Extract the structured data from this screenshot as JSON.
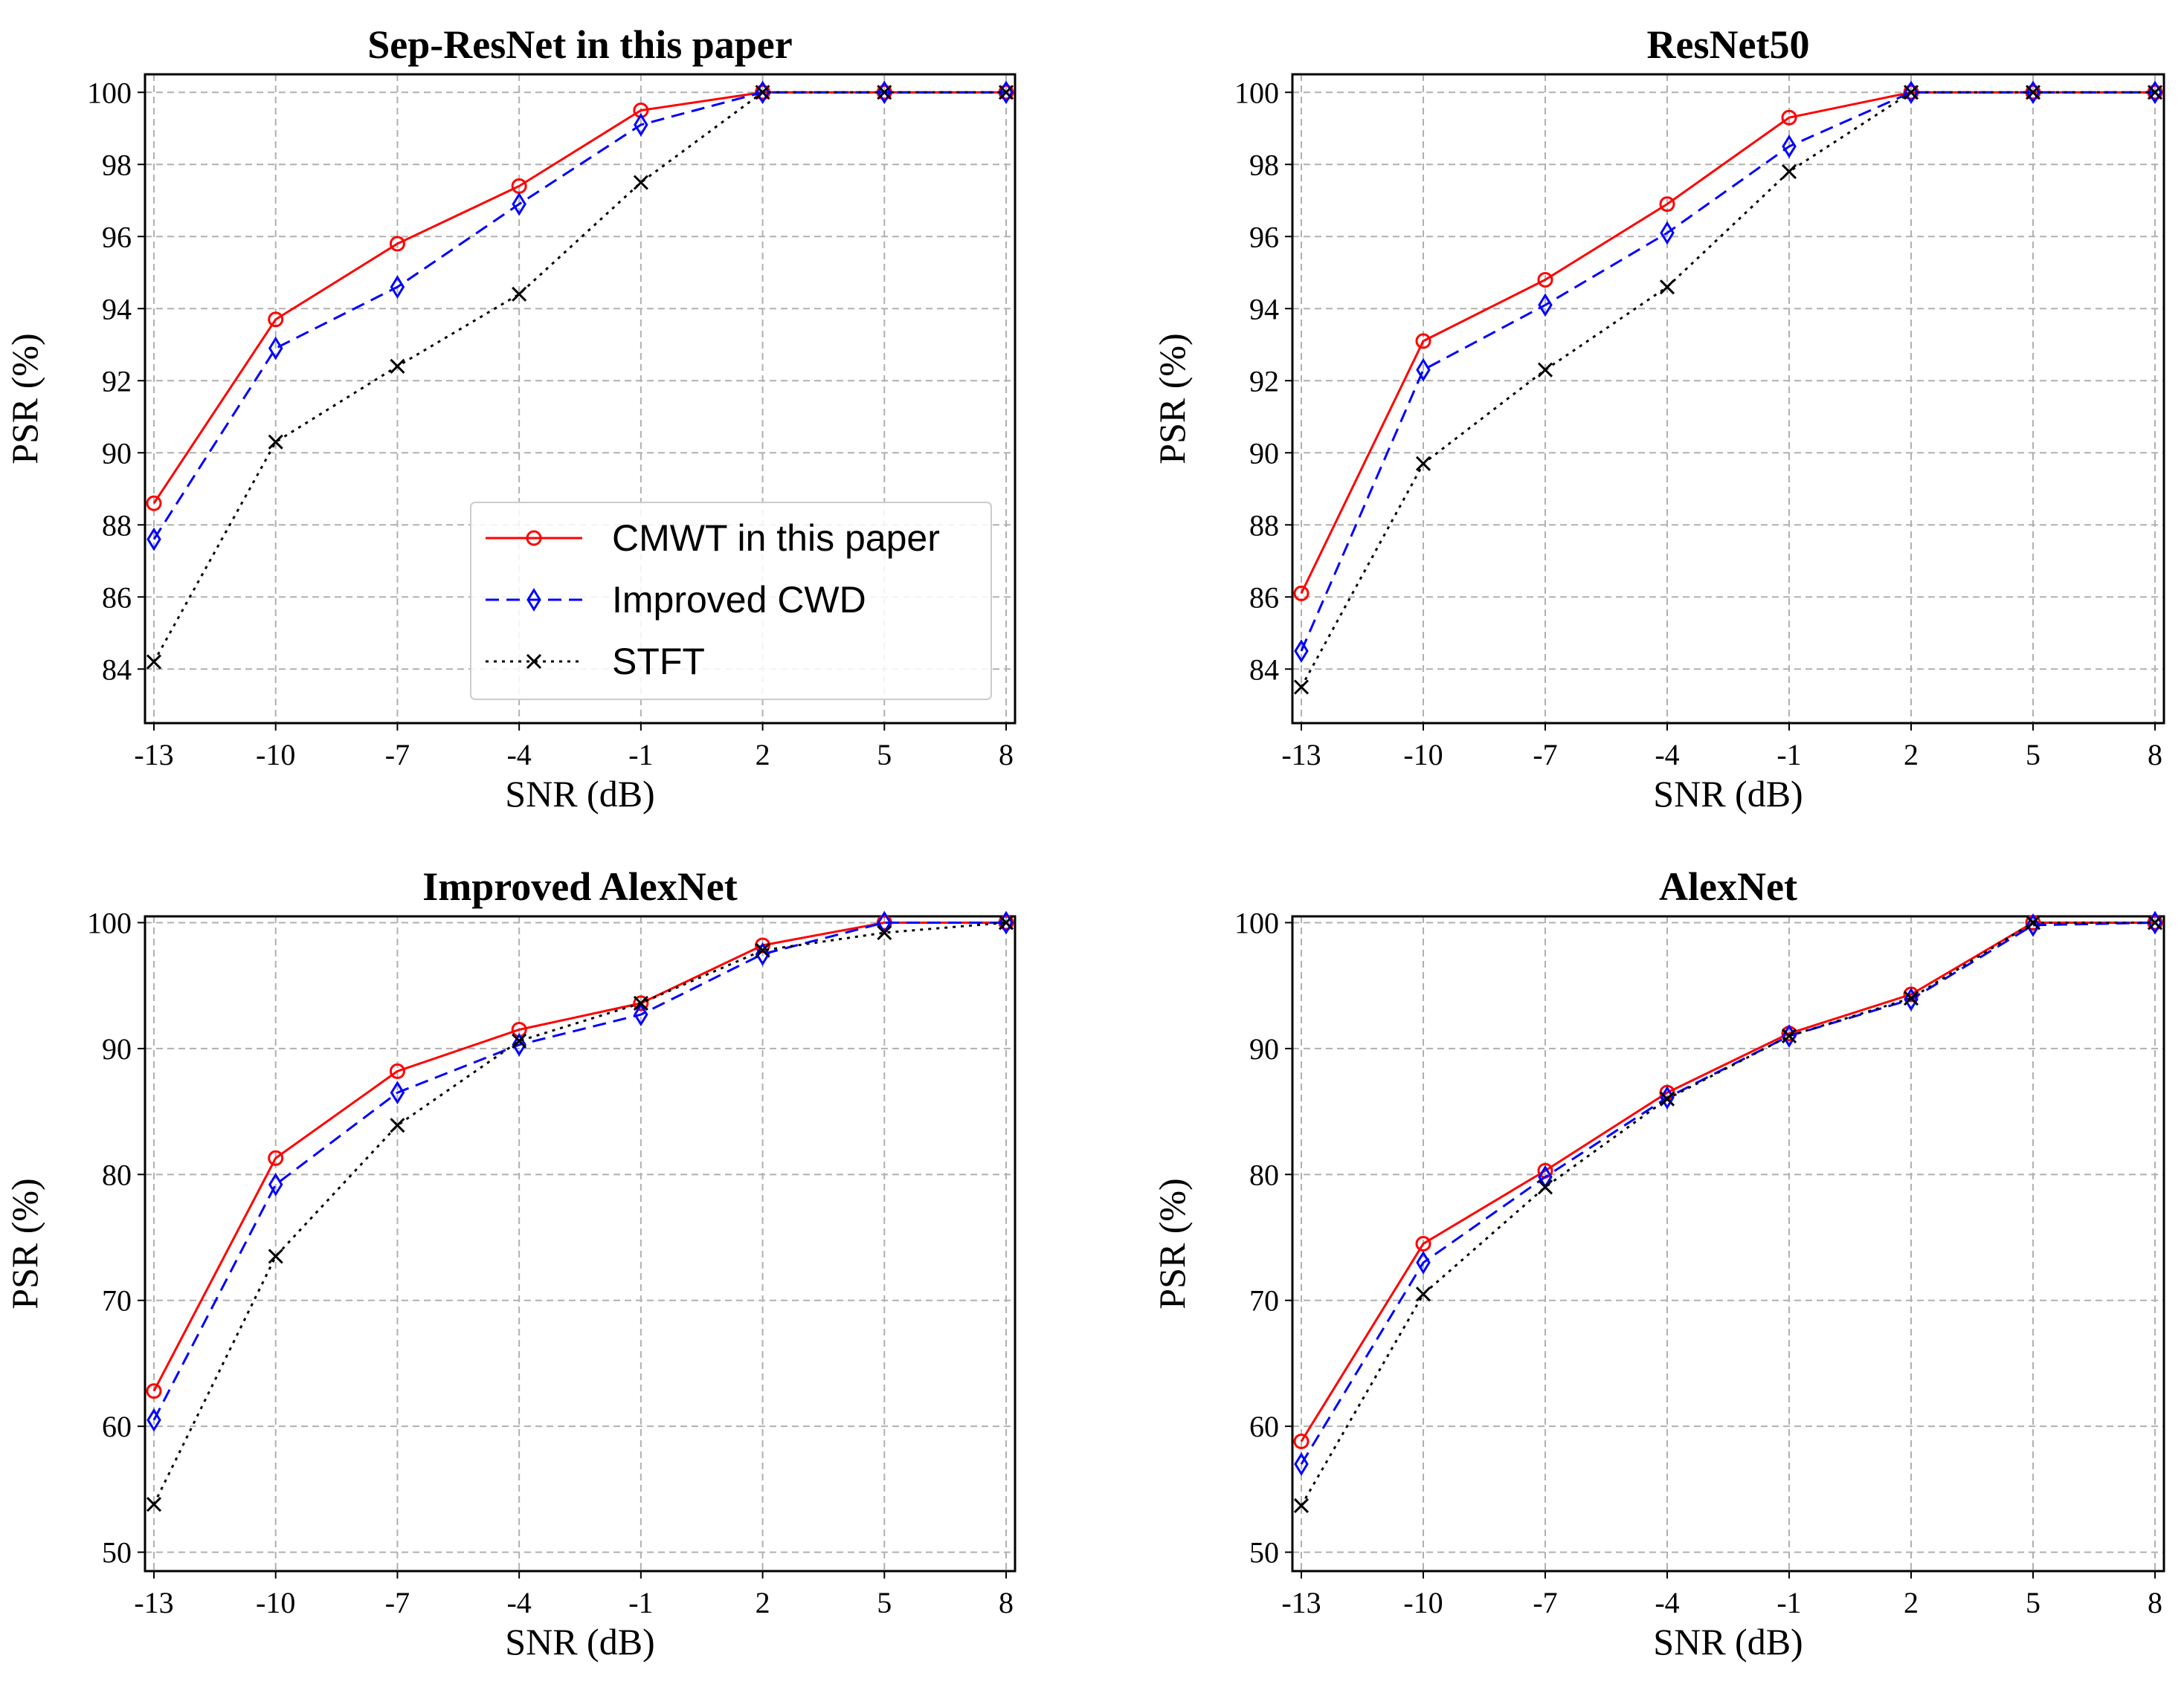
{
  "chart_data": [
    {
      "type": "line",
      "title": "Sep-ResNet in this paper",
      "xlabel": "SNR (dB)",
      "ylabel": "PSR (%)",
      "categories": [
        "-13",
        "-10",
        "-7",
        "-4",
        "-1",
        "2",
        "5",
        "8"
      ],
      "ylim": [
        82.5,
        100.5
      ],
      "yticks": [
        "84",
        "86",
        "88",
        "90",
        "92",
        "94",
        "96",
        "98",
        "100"
      ],
      "grid": true,
      "legend": "center-right",
      "series": [
        {
          "name": "CMWT in this paper",
          "values": [
            88.6,
            93.7,
            95.8,
            97.4,
            99.5,
            100,
            100,
            100
          ]
        },
        {
          "name": "Improved CWD",
          "values": [
            87.6,
            92.9,
            94.6,
            96.9,
            99.1,
            100,
            100,
            100
          ]
        },
        {
          "name": "STFT",
          "values": [
            84.2,
            90.3,
            92.4,
            94.4,
            97.5,
            100,
            100,
            100
          ]
        }
      ]
    },
    {
      "type": "line",
      "title": "ResNet50",
      "xlabel": "SNR (dB)",
      "ylabel": "PSR (%)",
      "categories": [
        "-13",
        "-10",
        "-7",
        "-4",
        "-1",
        "2",
        "5",
        "8"
      ],
      "ylim": [
        82.5,
        100.5
      ],
      "yticks": [
        "84",
        "86",
        "88",
        "90",
        "92",
        "94",
        "96",
        "98",
        "100"
      ],
      "grid": true,
      "series": [
        {
          "name": "CMWT in this paper",
          "values": [
            86.1,
            93.1,
            94.8,
            96.9,
            99.3,
            100,
            100,
            100
          ]
        },
        {
          "name": "Improved CWD",
          "values": [
            84.5,
            92.3,
            94.1,
            96.1,
            98.5,
            100,
            100,
            100
          ]
        },
        {
          "name": "STFT",
          "values": [
            83.5,
            89.7,
            92.3,
            94.6,
            97.8,
            100,
            100,
            100
          ]
        }
      ]
    },
    {
      "type": "line",
      "title": "Improved AlexNet",
      "xlabel": "SNR (dB)",
      "ylabel": "PSR (%)",
      "categories": [
        "-13",
        "-10",
        "-7",
        "-4",
        "-1",
        "2",
        "5",
        "8"
      ],
      "ylim": [
        48.5,
        100.5
      ],
      "yticks": [
        "50",
        "60",
        "70",
        "80",
        "90",
        "100"
      ],
      "grid": true,
      "series": [
        {
          "name": "CMWT in this paper",
          "values": [
            62.8,
            81.3,
            88.2,
            91.5,
            93.6,
            98.2,
            100,
            100
          ]
        },
        {
          "name": "Improved CWD",
          "values": [
            60.5,
            79.2,
            86.5,
            90.3,
            92.7,
            97.5,
            100,
            100
          ]
        },
        {
          "name": "STFT",
          "values": [
            53.8,
            73.5,
            83.9,
            90.6,
            93.6,
            97.8,
            99.2,
            100
          ]
        }
      ]
    },
    {
      "type": "line",
      "title": "AlexNet",
      "xlabel": "SNR (dB)",
      "ylabel": "PSR (%)",
      "categories": [
        "-13",
        "-10",
        "-7",
        "-4",
        "-1",
        "2",
        "5",
        "8"
      ],
      "ylim": [
        48.5,
        100.5
      ],
      "yticks": [
        "50",
        "60",
        "70",
        "80",
        "90",
        "100"
      ],
      "grid": true,
      "series": [
        {
          "name": "CMWT in this paper",
          "values": [
            58.8,
            74.5,
            80.3,
            86.5,
            91.2,
            94.3,
            100,
            100
          ]
        },
        {
          "name": "Improved CWD",
          "values": [
            57.0,
            73.0,
            79.8,
            86.1,
            91.0,
            93.9,
            99.8,
            100
          ]
        },
        {
          "name": "STFT",
          "values": [
            53.7,
            70.5,
            79.0,
            86.0,
            91.0,
            94.0,
            100,
            100
          ]
        }
      ]
    }
  ],
  "styles": {
    "colors": [
      "#ff0000",
      "#0000ff",
      "#000000"
    ],
    "dashes": [
      "",
      "18,10",
      "4,7"
    ],
    "markers": [
      "circle",
      "diamond",
      "x"
    ],
    "grid_color": "#b0b0b0",
    "axis_color": "#000000"
  }
}
